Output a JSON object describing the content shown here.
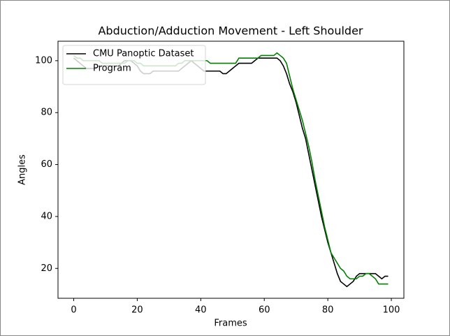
{
  "chart_data": {
    "type": "line",
    "title": "Abduction/Adduction Movement - Left Shoulder",
    "x_label": "Frames",
    "y_label": "Angles",
    "x": [
      0,
      1,
      2,
      3,
      4,
      5,
      6,
      7,
      8,
      9,
      10,
      11,
      12,
      13,
      14,
      15,
      16,
      17,
      18,
      19,
      20,
      21,
      22,
      23,
      24,
      25,
      26,
      27,
      28,
      29,
      30,
      31,
      32,
      33,
      34,
      35,
      36,
      37,
      38,
      39,
      40,
      41,
      42,
      43,
      44,
      45,
      46,
      47,
      48,
      49,
      50,
      51,
      52,
      53,
      54,
      55,
      56,
      57,
      58,
      59,
      60,
      61,
      62,
      63,
      64,
      65,
      66,
      67,
      68,
      69,
      70,
      71,
      72,
      73,
      74,
      75,
      76,
      77,
      78,
      79,
      80,
      81,
      82,
      83,
      84,
      85,
      86,
      87,
      88,
      89,
      90,
      91,
      92,
      93,
      94,
      95,
      96,
      97,
      98,
      99
    ],
    "series": [
      {
        "name": "CMU Panoptic Dataset",
        "color": "#000000",
        "values": [
          101,
          100,
          99,
          98,
          97,
          97,
          97,
          97,
          98,
          98,
          98,
          98,
          98,
          98,
          98,
          99,
          100,
          100,
          100,
          99,
          98,
          96,
          95,
          95,
          95,
          96,
          96,
          96,
          96,
          96,
          96,
          96,
          96,
          96,
          97,
          98,
          99,
          100,
          99,
          98,
          97,
          96,
          96,
          96,
          96,
          96,
          96,
          95,
          95,
          96,
          97,
          98,
          99,
          99,
          99,
          99,
          99,
          100,
          101,
          101,
          101,
          101,
          101,
          101,
          101,
          100,
          98,
          95,
          91,
          88,
          84,
          79,
          74,
          70,
          64,
          58,
          52,
          46,
          40,
          35,
          30,
          26,
          22,
          18,
          15,
          14,
          13,
          14,
          15,
          17,
          18,
          18,
          18,
          18,
          18,
          18,
          17,
          16,
          17,
          17
        ]
      },
      {
        "name": "Program",
        "color": "#008000",
        "values": [
          102,
          101,
          101,
          100,
          100,
          100,
          100,
          100,
          100,
          99,
          99,
          99,
          99,
          99,
          99,
          99,
          99,
          100,
          100,
          100,
          99,
          99,
          98,
          98,
          98,
          98,
          98,
          98,
          98,
          98,
          98,
          98,
          98,
          99,
          99,
          100,
          100,
          100,
          100,
          100,
          100,
          100,
          100,
          99,
          99,
          99,
          99,
          99,
          99,
          99,
          99,
          99,
          101,
          101,
          101,
          101,
          101,
          101,
          101,
          102,
          102,
          102,
          102,
          102,
          103,
          102,
          101,
          99,
          94,
          89,
          85,
          81,
          77,
          72,
          67,
          61,
          54,
          48,
          42,
          36,
          31,
          26,
          24,
          22,
          20,
          19,
          17,
          16,
          16,
          16,
          17,
          17,
          18,
          18,
          17,
          16,
          14,
          14,
          14,
          14
        ]
      }
    ],
    "xlim": [
      -4.95,
      103.95
    ],
    "xticks": [
      0,
      20,
      40,
      60,
      80,
      100
    ],
    "ylim": [
      8.5,
      107.5
    ],
    "yticks": [
      20,
      40,
      60,
      80,
      100
    ],
    "legend": "upper left"
  }
}
